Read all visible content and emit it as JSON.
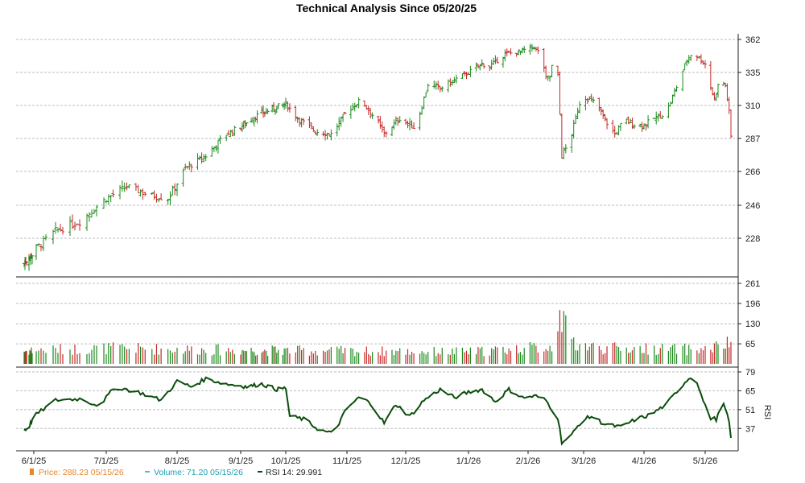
{
  "chart_data": {
    "type": "candlestick",
    "title": "Technical Analysis Since 05/20/25",
    "x_ticks": [
      "6/1/25",
      "7/1/25",
      "8/1/25",
      "9/1/25",
      "10/1/25",
      "11/1/25",
      "12/1/25",
      "1/1/26",
      "2/1/26",
      "3/1/26",
      "4/1/26",
      "5/1/26"
    ],
    "price_axis": {
      "ticks": [
        "362",
        "335",
        "310",
        "287",
        "266",
        "246",
        "228"
      ]
    },
    "volume_axis": {
      "ticks": [
        "261",
        "196",
        "130",
        "65"
      ]
    },
    "rsi_axis": {
      "label": "RSI",
      "ticks": [
        "79",
        "65",
        "51",
        "37"
      ]
    },
    "grid": true,
    "colors": {
      "up": "#1a8a1a",
      "down": "#c62828",
      "rsi": "#0b4d0b",
      "price_legend": "#e8862a",
      "volume_legend": "#1aa0b0"
    },
    "legend": {
      "price": "Price: 288.23  05/15/26",
      "volume": "Volume: 71.20  05/15/26",
      "rsi": "RSI 14: 29.991"
    },
    "price_anchors": [
      [
        "2025-05-20",
        214
      ],
      [
        "2025-05-23",
        216
      ],
      [
        "2025-05-30",
        219
      ],
      [
        "2025-06-10",
        232
      ],
      [
        "2025-06-20",
        237
      ],
      [
        "2025-07-01",
        250
      ],
      [
        "2025-07-10",
        257
      ],
      [
        "2025-07-20",
        252
      ],
      [
        "2025-07-28",
        250
      ],
      [
        "2025-08-05",
        268
      ],
      [
        "2025-08-15",
        276
      ],
      [
        "2025-08-25",
        290
      ],
      [
        "2025-09-05",
        298
      ],
      [
        "2025-09-12",
        303
      ],
      [
        "2025-09-25",
        309
      ],
      [
        "2025-10-01",
        311
      ],
      [
        "2025-10-08",
        300
      ],
      [
        "2025-10-16",
        292
      ],
      [
        "2025-10-24",
        290
      ],
      [
        "2025-11-01",
        306
      ],
      [
        "2025-11-08",
        314
      ],
      [
        "2025-11-16",
        300
      ],
      [
        "2025-11-20",
        290
      ],
      [
        "2025-11-28",
        301
      ],
      [
        "2025-12-06",
        294
      ],
      [
        "2025-12-12",
        326
      ],
      [
        "2025-12-18",
        323
      ],
      [
        "2025-12-26",
        330
      ],
      [
        "2026-01-01",
        335
      ],
      [
        "2026-01-08",
        342
      ],
      [
        "2026-01-12",
        340
      ],
      [
        "2026-01-20",
        350
      ],
      [
        "2026-01-28",
        352
      ],
      [
        "2026-02-04",
        356
      ],
      [
        "2026-02-08",
        348
      ],
      [
        "2026-02-10",
        330
      ],
      [
        "2026-02-12",
        332
      ],
      [
        "2026-02-14",
        348
      ],
      [
        "2026-02-16",
        332
      ],
      [
        "2026-02-18",
        276
      ],
      [
        "2026-02-22",
        285
      ],
      [
        "2026-02-27",
        312
      ],
      [
        "2026-03-02",
        316
      ],
      [
        "2026-03-07",
        312
      ],
      [
        "2026-03-12",
        300
      ],
      [
        "2026-03-17",
        290
      ],
      [
        "2026-03-22",
        300
      ],
      [
        "2026-03-28",
        296
      ],
      [
        "2026-04-02",
        297
      ],
      [
        "2026-04-06",
        301
      ],
      [
        "2026-04-12",
        305
      ],
      [
        "2026-04-18",
        328
      ],
      [
        "2026-04-22",
        345
      ],
      [
        "2026-04-25",
        352
      ],
      [
        "2026-04-29",
        345
      ],
      [
        "2026-05-01",
        342
      ],
      [
        "2026-05-03",
        328
      ],
      [
        "2026-05-06",
        315
      ],
      [
        "2026-05-09",
        330
      ],
      [
        "2026-05-12",
        325
      ],
      [
        "2026-05-14",
        305
      ],
      [
        "2026-05-15",
        288.23
      ]
    ],
    "volume_anchors": [
      [
        "2025-05-20",
        45
      ],
      [
        "2025-07-01",
        55
      ],
      [
        "2025-09-01",
        48
      ],
      [
        "2025-11-01",
        45
      ],
      [
        "2026-01-01",
        42
      ],
      [
        "2026-02-15",
        60
      ],
      [
        "2026-02-17",
        261
      ],
      [
        "2026-02-18",
        150
      ],
      [
        "2026-02-21",
        110
      ],
      [
        "2026-02-25",
        70
      ],
      [
        "2026-03-10",
        55
      ],
      [
        "2026-05-01",
        50
      ],
      [
        "2026-05-15",
        71.2
      ]
    ],
    "rsi_anchors": [
      [
        "2025-05-20",
        36
      ],
      [
        "2025-05-25",
        37
      ],
      [
        "2025-06-01",
        46
      ],
      [
        "2025-06-10",
        58
      ],
      [
        "2025-06-20",
        59
      ],
      [
        "2025-06-28",
        54
      ],
      [
        "2025-07-05",
        68
      ],
      [
        "2025-07-15",
        64
      ],
      [
        "2025-07-25",
        58
      ],
      [
        "2025-08-01",
        72
      ],
      [
        "2025-08-08",
        68
      ],
      [
        "2025-08-15",
        74
      ],
      [
        "2025-08-25",
        70
      ],
      [
        "2025-09-05",
        68
      ],
      [
        "2025-09-15",
        70
      ],
      [
        "2025-09-25",
        66
      ],
      [
        "2025-10-01",
        67
      ],
      [
        "2025-10-03",
        46
      ],
      [
        "2025-10-10",
        44
      ],
      [
        "2025-10-18",
        36
      ],
      [
        "2025-10-25",
        33
      ],
      [
        "2025-11-01",
        52
      ],
      [
        "2025-11-08",
        61
      ],
      [
        "2025-11-14",
        54
      ],
      [
        "2025-11-20",
        41
      ],
      [
        "2025-11-26",
        55
      ],
      [
        "2025-12-03",
        46
      ],
      [
        "2025-12-10",
        58
      ],
      [
        "2025-12-18",
        66
      ],
      [
        "2025-12-25",
        60
      ],
      [
        "2026-01-01",
        64
      ],
      [
        "2026-01-08",
        66
      ],
      [
        "2026-01-15",
        57
      ],
      [
        "2026-01-22",
        66
      ],
      [
        "2026-01-29",
        60
      ],
      [
        "2026-02-05",
        61
      ],
      [
        "2026-02-10",
        58
      ],
      [
        "2026-02-14",
        49
      ],
      [
        "2026-02-16",
        45
      ],
      [
        "2026-02-18",
        27
      ],
      [
        "2026-02-22",
        30
      ],
      [
        "2026-02-28",
        43
      ],
      [
        "2026-03-05",
        46
      ],
      [
        "2026-03-12",
        40
      ],
      [
        "2026-03-20",
        38
      ],
      [
        "2026-03-28",
        44
      ],
      [
        "2026-04-04",
        47
      ],
      [
        "2026-04-12",
        55
      ],
      [
        "2026-04-18",
        66
      ],
      [
        "2026-04-22",
        73
      ],
      [
        "2026-04-26",
        77
      ],
      [
        "2026-04-29",
        62
      ],
      [
        "2026-05-03",
        45
      ],
      [
        "2026-05-07",
        44
      ],
      [
        "2026-05-11",
        55
      ],
      [
        "2026-05-14",
        42
      ],
      [
        "2026-05-15",
        29.991
      ]
    ]
  }
}
